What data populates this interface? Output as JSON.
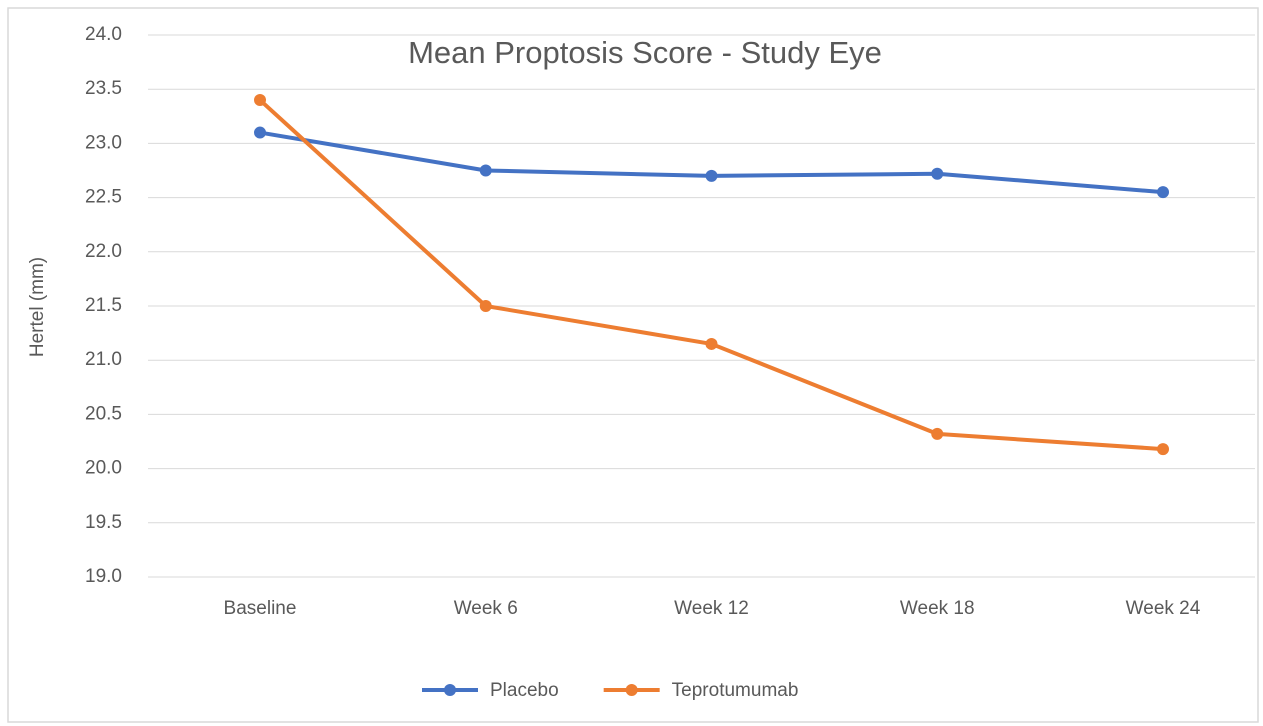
{
  "chart_data": {
    "type": "line",
    "title": "Mean Proptosis Score - Study Eye",
    "y_label": "Hertel (mm)",
    "categories": [
      "Baseline",
      "Week 6",
      "Week 12",
      "Week 18",
      "Week 24"
    ],
    "series": [
      {
        "name": "Placebo",
        "color": "#4472c4",
        "values": [
          23.1,
          22.75,
          22.7,
          22.72,
          22.55
        ]
      },
      {
        "name": "Teprotumumab",
        "color": "#ed7d31",
        "values": [
          23.4,
          21.5,
          21.15,
          20.32,
          20.18
        ]
      }
    ],
    "ylim": [
      19,
      24
    ],
    "yticks": [
      {
        "value": 19,
        "label": "19.0"
      },
      19.5,
      {
        "value": 20,
        "label": "20.0"
      },
      20.5,
      {
        "value": 21,
        "label": "21.0"
      },
      21.5,
      {
        "value": 22,
        "label": "22.0"
      },
      22.5,
      {
        "value": 23,
        "label": "23.0"
      },
      23.5,
      {
        "value": 24,
        "label": "24.0"
      }
    ],
    "grid": true,
    "legend": "bottom"
  }
}
